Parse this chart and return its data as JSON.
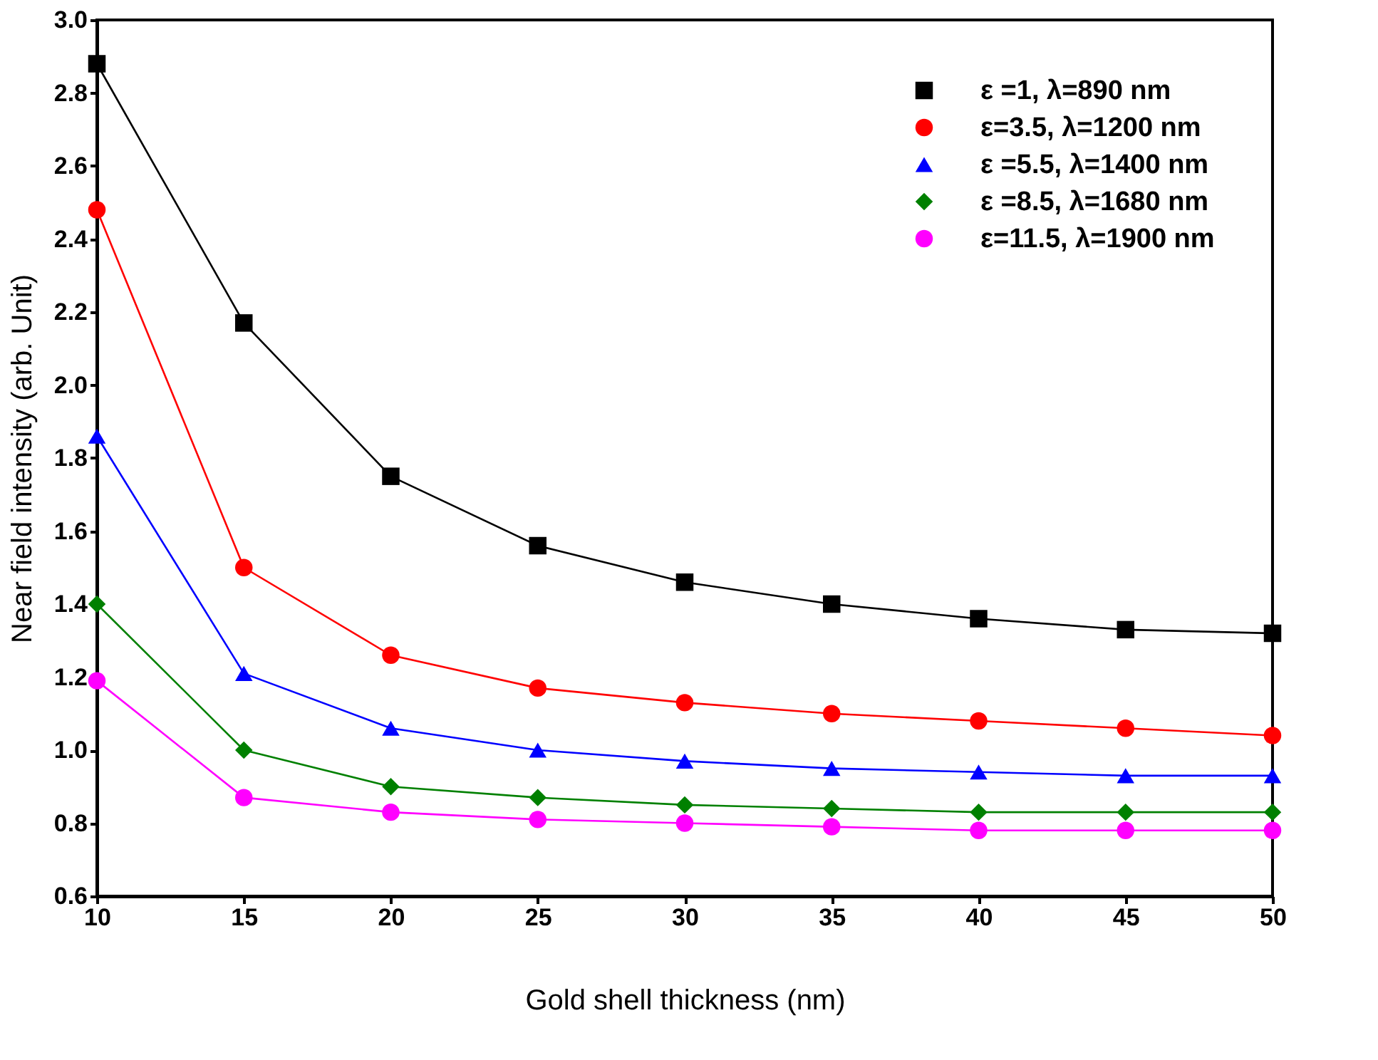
{
  "chart_data": {
    "type": "line",
    "xlabel": "Gold shell thickness (nm)",
    "ylabel": "Near field intensity (arb. Unit)",
    "x": [
      10,
      15,
      20,
      25,
      30,
      35,
      40,
      45,
      50
    ],
    "xlim": [
      10,
      50
    ],
    "xticks": [
      10,
      15,
      20,
      25,
      30,
      35,
      40,
      45,
      50
    ],
    "ylim": [
      0.6,
      3.0
    ],
    "yticks": [
      0.6,
      0.8,
      {
        "value": 1,
        "label": "1.0"
      },
      1.2,
      1.4,
      1.6,
      1.8,
      {
        "value": 2,
        "label": "2.0"
      },
      2.2,
      2.4,
      2.6,
      2.8,
      {
        "value": 3,
        "label": "3.0"
      }
    ],
    "grid": false,
    "legend": "top right",
    "line_style": "solid",
    "series": [
      {
        "name": "ε =1, λ=890 nm",
        "color": "#000000",
        "marker": "square",
        "values": [
          2.88,
          2.17,
          1.75,
          1.56,
          1.46,
          1.4,
          1.36,
          1.33,
          1.32
        ]
      },
      {
        "name": "ε=3.5, λ=1200 nm",
        "color": "#ff0000",
        "marker": "circle",
        "values": [
          2.48,
          1.5,
          1.26,
          1.17,
          1.13,
          1.1,
          1.08,
          1.06,
          1.04
        ]
      },
      {
        "name": "ε =5.5, λ=1400 nm",
        "color": "#0000ff",
        "marker": "triangle",
        "values": [
          1.86,
          1.21,
          1.06,
          1.0,
          0.97,
          0.95,
          0.94,
          0.93,
          0.93
        ]
      },
      {
        "name": "ε =8.5, λ=1680 nm",
        "color": "#008000",
        "marker": "diamond",
        "values": [
          1.4,
          1.0,
          0.9,
          0.87,
          0.85,
          0.84,
          0.83,
          0.83,
          0.83
        ]
      },
      {
        "name": "ε=11.5, λ=1900 nm",
        "color": "#ff00ff",
        "marker": "circle",
        "values": [
          1.19,
          0.87,
          0.83,
          0.81,
          0.8,
          0.79,
          0.78,
          0.78,
          0.78
        ]
      }
    ]
  }
}
